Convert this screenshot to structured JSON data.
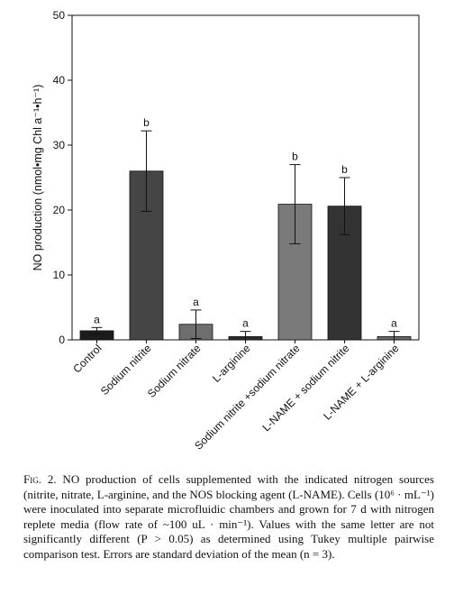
{
  "chart_data": {
    "type": "bar",
    "title": "",
    "xlabel": "",
    "ylabel": "NO production (nmol•mg Chl a⁻¹•h⁻¹)",
    "ylim": [
      0,
      50
    ],
    "yticks": [
      0,
      10,
      20,
      30,
      40,
      50
    ],
    "categories": [
      "Control",
      "Sodium nitrite",
      "Sodium nitrate",
      "L-arginine",
      "Sodium nitrite +sodium nitrate",
      "L-NAME + sodium nitrite",
      "L-NAME + L-arginine"
    ],
    "values": [
      1.4,
      26.0,
      2.4,
      0.5,
      20.9,
      20.6,
      0.5
    ],
    "errors": [
      0.5,
      6.2,
      2.2,
      0.8,
      6.1,
      4.4,
      0.8
    ],
    "significance_letters": [
      "a",
      "b",
      "a",
      "a",
      "b",
      "b",
      "a"
    ],
    "bar_colors": [
      "#1c1c1c",
      "#454545",
      "#6e6e6e",
      "#2c2c2c",
      "#7a7a7a",
      "#333333",
      "#6a6a6a"
    ],
    "grid": false
  },
  "caption": {
    "label": "Fig. 2.",
    "text": " NO production of cells supplemented with the indicated nitrogen sources (nitrite, nitrate, L-arginine, and the NOS blocking agent (L-NAME). Cells (10⁶ · mL⁻¹) were inoculated into separate microfluidic chambers and grown for 7 d with nitrogen replete media (flow rate of ~100 uL · min⁻¹). Values with the same letter are not significantly different (P > 0.05) as determined using Tukey multiple pairwise comparison test. Errors are standard deviation of the mean (n = 3)."
  }
}
